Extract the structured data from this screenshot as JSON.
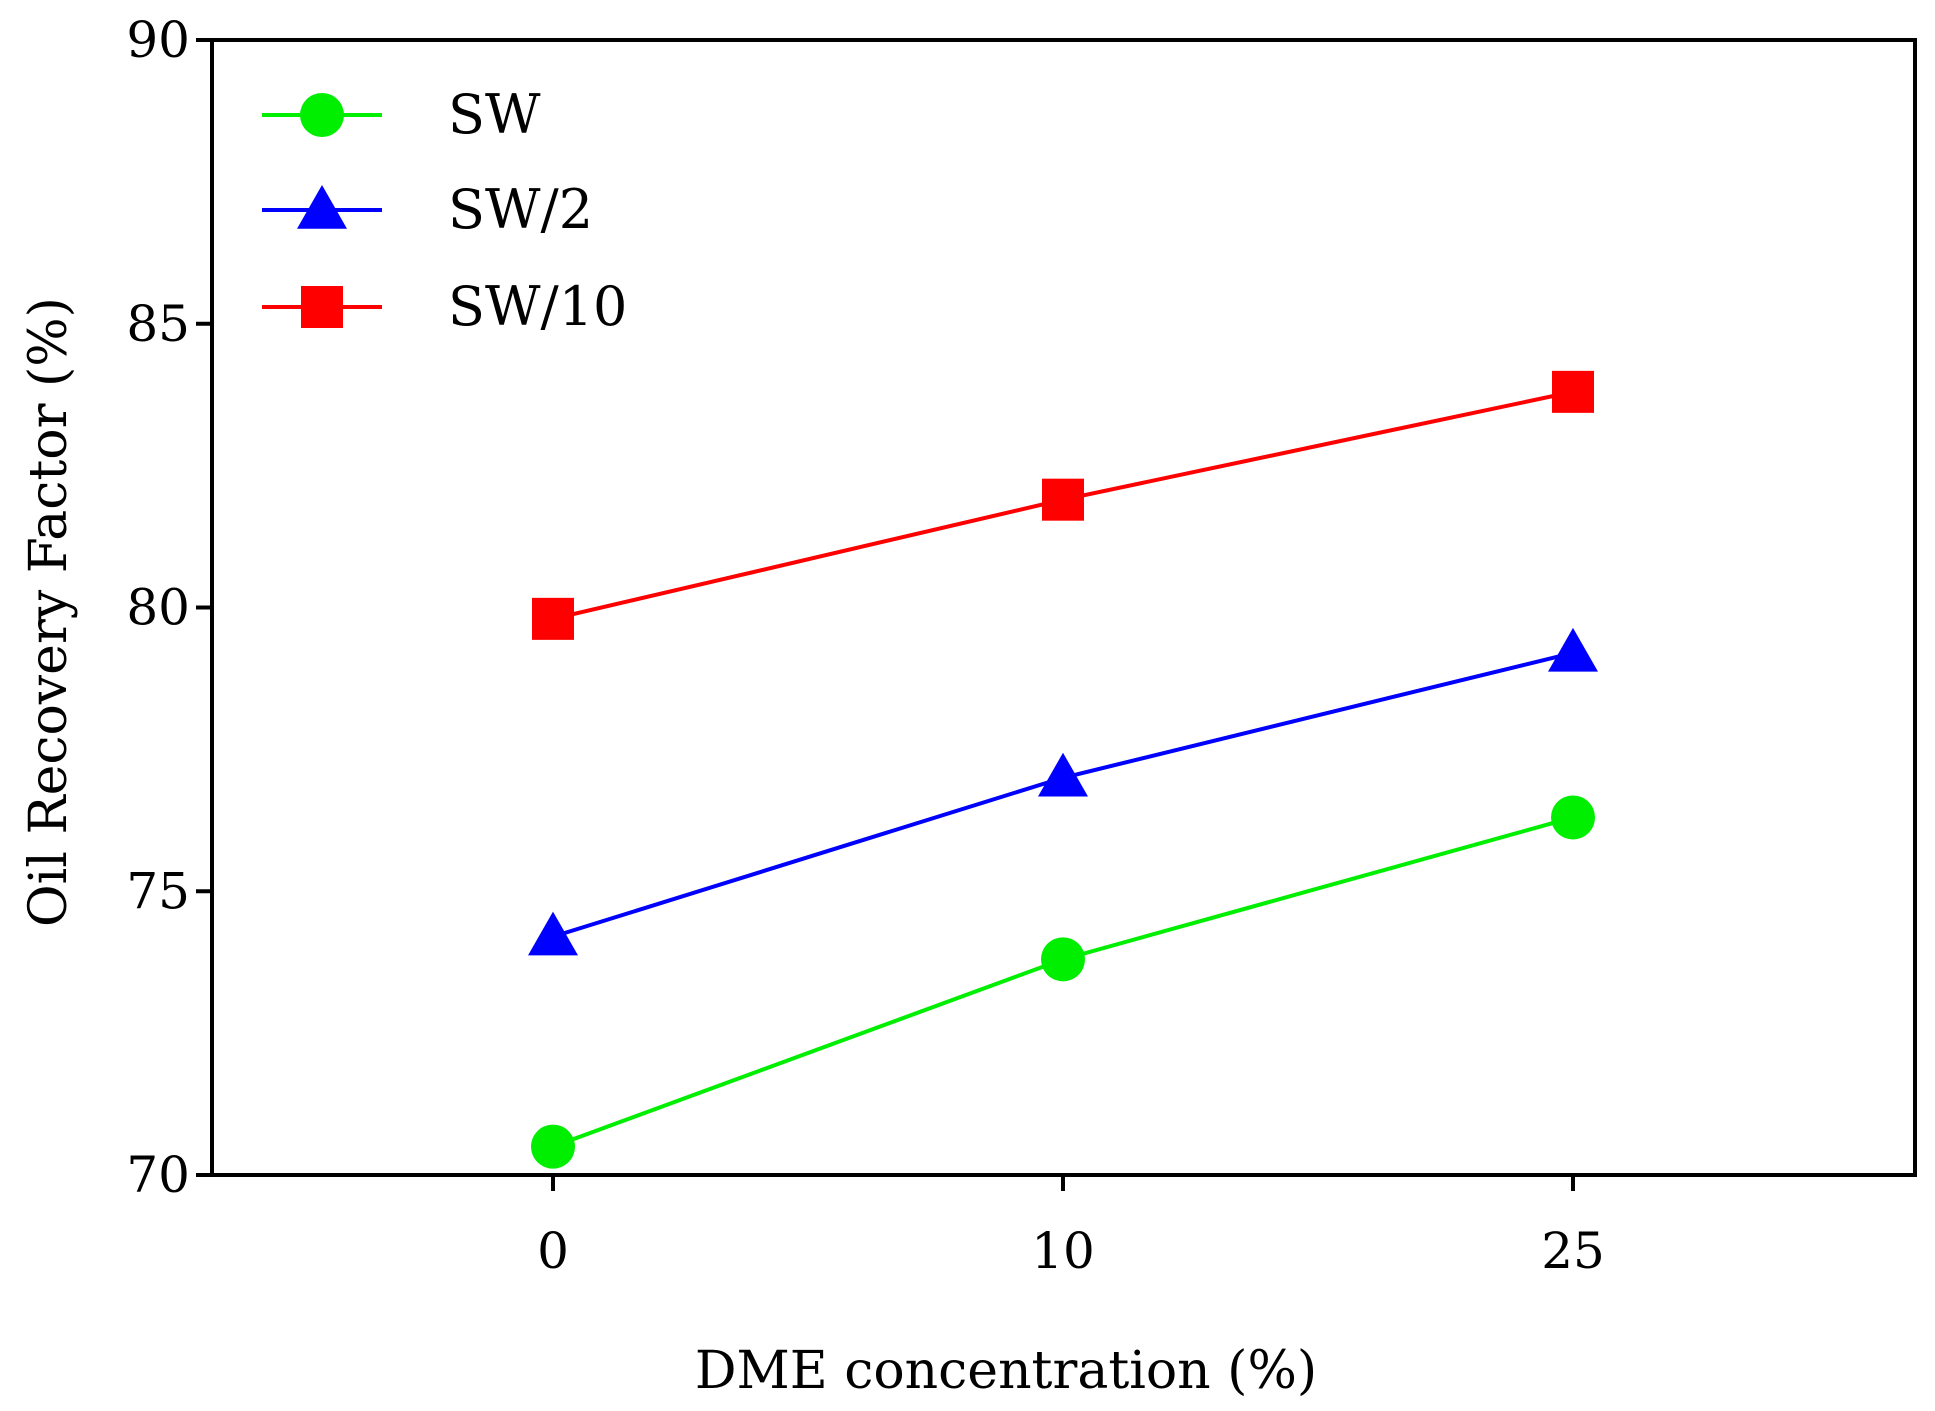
{
  "chart_data": {
    "type": "line",
    "title": "",
    "xlabel": "DME concentration (%)",
    "ylabel": "Oil Recovery Factor (%)",
    "categories": [
      "0",
      "10",
      "25"
    ],
    "ylim": [
      70,
      90
    ],
    "yticks": [
      "70",
      "75",
      "80",
      "85",
      "90"
    ],
    "grid": false,
    "legend_position": "top-left",
    "series": [
      {
        "name": "SW",
        "color": "#00ee00",
        "marker": "circle",
        "values": [
          70.5,
          73.8,
          76.3
        ]
      },
      {
        "name": "SW/2",
        "color": "#0000ff",
        "marker": "triangle",
        "values": [
          74.2,
          77.0,
          79.2
        ]
      },
      {
        "name": "SW/10",
        "color": "#ff0000",
        "marker": "square",
        "values": [
          79.8,
          81.9,
          83.8
        ]
      }
    ]
  }
}
